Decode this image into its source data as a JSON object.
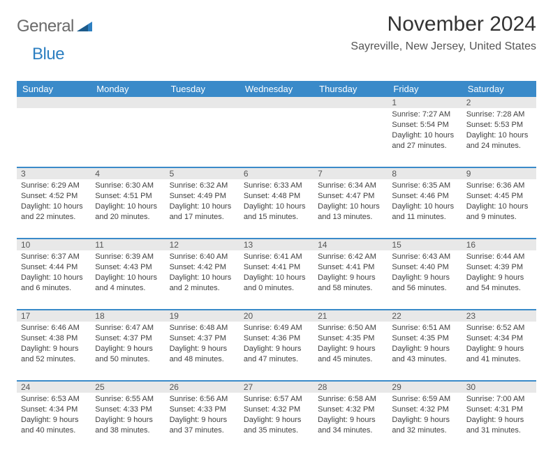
{
  "logo": {
    "general": "General",
    "blue": "Blue"
  },
  "title": "November 2024",
  "location": "Sayreville, New Jersey, United States",
  "colors": {
    "header_bg": "#3a8ac9",
    "header_text": "#ffffff",
    "daynum_bg": "#e8e8e8",
    "border": "#3a8ac9",
    "body_text": "#404040",
    "title_text": "#333333"
  },
  "columns": [
    "Sunday",
    "Monday",
    "Tuesday",
    "Wednesday",
    "Thursday",
    "Friday",
    "Saturday"
  ],
  "weeks": [
    [
      null,
      null,
      null,
      null,
      null,
      {
        "n": "1",
        "sunrise": "7:27 AM",
        "sunset": "5:54 PM",
        "daylight": "10 hours and 27 minutes."
      },
      {
        "n": "2",
        "sunrise": "7:28 AM",
        "sunset": "5:53 PM",
        "daylight": "10 hours and 24 minutes."
      }
    ],
    [
      {
        "n": "3",
        "sunrise": "6:29 AM",
        "sunset": "4:52 PM",
        "daylight": "10 hours and 22 minutes."
      },
      {
        "n": "4",
        "sunrise": "6:30 AM",
        "sunset": "4:51 PM",
        "daylight": "10 hours and 20 minutes."
      },
      {
        "n": "5",
        "sunrise": "6:32 AM",
        "sunset": "4:49 PM",
        "daylight": "10 hours and 17 minutes."
      },
      {
        "n": "6",
        "sunrise": "6:33 AM",
        "sunset": "4:48 PM",
        "daylight": "10 hours and 15 minutes."
      },
      {
        "n": "7",
        "sunrise": "6:34 AM",
        "sunset": "4:47 PM",
        "daylight": "10 hours and 13 minutes."
      },
      {
        "n": "8",
        "sunrise": "6:35 AM",
        "sunset": "4:46 PM",
        "daylight": "10 hours and 11 minutes."
      },
      {
        "n": "9",
        "sunrise": "6:36 AM",
        "sunset": "4:45 PM",
        "daylight": "10 hours and 9 minutes."
      }
    ],
    [
      {
        "n": "10",
        "sunrise": "6:37 AM",
        "sunset": "4:44 PM",
        "daylight": "10 hours and 6 minutes."
      },
      {
        "n": "11",
        "sunrise": "6:39 AM",
        "sunset": "4:43 PM",
        "daylight": "10 hours and 4 minutes."
      },
      {
        "n": "12",
        "sunrise": "6:40 AM",
        "sunset": "4:42 PM",
        "daylight": "10 hours and 2 minutes."
      },
      {
        "n": "13",
        "sunrise": "6:41 AM",
        "sunset": "4:41 PM",
        "daylight": "10 hours and 0 minutes."
      },
      {
        "n": "14",
        "sunrise": "6:42 AM",
        "sunset": "4:41 PM",
        "daylight": "9 hours and 58 minutes."
      },
      {
        "n": "15",
        "sunrise": "6:43 AM",
        "sunset": "4:40 PM",
        "daylight": "9 hours and 56 minutes."
      },
      {
        "n": "16",
        "sunrise": "6:44 AM",
        "sunset": "4:39 PM",
        "daylight": "9 hours and 54 minutes."
      }
    ],
    [
      {
        "n": "17",
        "sunrise": "6:46 AM",
        "sunset": "4:38 PM",
        "daylight": "9 hours and 52 minutes."
      },
      {
        "n": "18",
        "sunrise": "6:47 AM",
        "sunset": "4:37 PM",
        "daylight": "9 hours and 50 minutes."
      },
      {
        "n": "19",
        "sunrise": "6:48 AM",
        "sunset": "4:37 PM",
        "daylight": "9 hours and 48 minutes."
      },
      {
        "n": "20",
        "sunrise": "6:49 AM",
        "sunset": "4:36 PM",
        "daylight": "9 hours and 47 minutes."
      },
      {
        "n": "21",
        "sunrise": "6:50 AM",
        "sunset": "4:35 PM",
        "daylight": "9 hours and 45 minutes."
      },
      {
        "n": "22",
        "sunrise": "6:51 AM",
        "sunset": "4:35 PM",
        "daylight": "9 hours and 43 minutes."
      },
      {
        "n": "23",
        "sunrise": "6:52 AM",
        "sunset": "4:34 PM",
        "daylight": "9 hours and 41 minutes."
      }
    ],
    [
      {
        "n": "24",
        "sunrise": "6:53 AM",
        "sunset": "4:34 PM",
        "daylight": "9 hours and 40 minutes."
      },
      {
        "n": "25",
        "sunrise": "6:55 AM",
        "sunset": "4:33 PM",
        "daylight": "9 hours and 38 minutes."
      },
      {
        "n": "26",
        "sunrise": "6:56 AM",
        "sunset": "4:33 PM",
        "daylight": "9 hours and 37 minutes."
      },
      {
        "n": "27",
        "sunrise": "6:57 AM",
        "sunset": "4:32 PM",
        "daylight": "9 hours and 35 minutes."
      },
      {
        "n": "28",
        "sunrise": "6:58 AM",
        "sunset": "4:32 PM",
        "daylight": "9 hours and 34 minutes."
      },
      {
        "n": "29",
        "sunrise": "6:59 AM",
        "sunset": "4:32 PM",
        "daylight": "9 hours and 32 minutes."
      },
      {
        "n": "30",
        "sunrise": "7:00 AM",
        "sunset": "4:31 PM",
        "daylight": "9 hours and 31 minutes."
      }
    ]
  ],
  "labels": {
    "sunrise": "Sunrise: ",
    "sunset": "Sunset: ",
    "daylight": "Daylight: "
  }
}
